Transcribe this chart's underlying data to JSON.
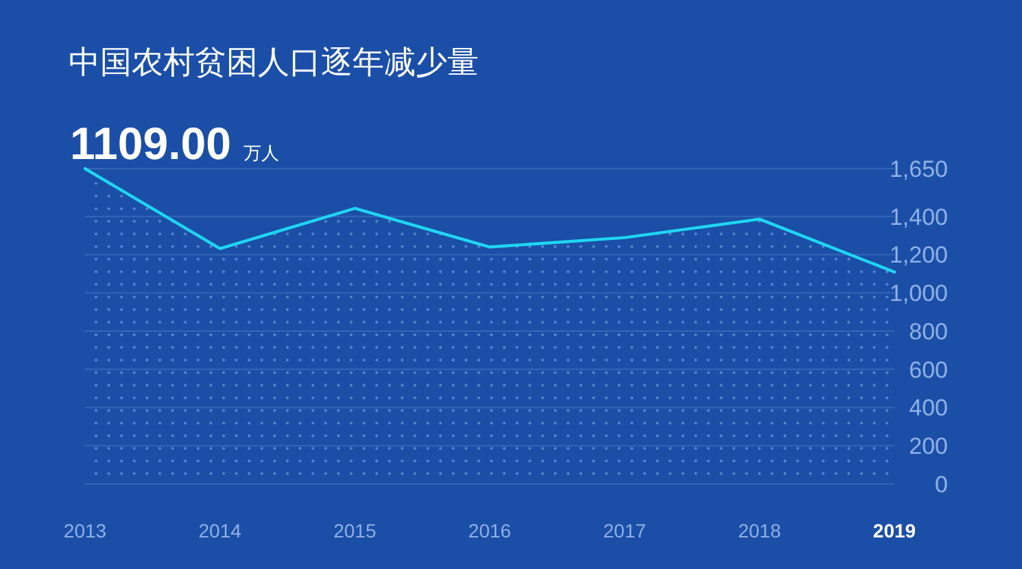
{
  "chart_data": {
    "type": "area",
    "title": "中国农村贫困人口逐年减少量",
    "categories": [
      "2013",
      "2014",
      "2015",
      "2016",
      "2017",
      "2018",
      "2019"
    ],
    "values": [
      1650,
      1232,
      1442,
      1240,
      1289,
      1386,
      1109
    ],
    "color": "#1fd6f2",
    "ylim": [
      0,
      1650
    ],
    "yticks": [
      0,
      200,
      400,
      600,
      800,
      {
        "value": 1000,
        "label": "1,000"
      },
      {
        "value": 1200,
        "label": "1,200"
      },
      {
        "value": 1400,
        "label": "1,400"
      },
      {
        "value": 1650,
        "label": "1,650"
      }
    ],
    "grid": "y",
    "annotations": [
      "1109.00 万人"
    ]
  }
}
